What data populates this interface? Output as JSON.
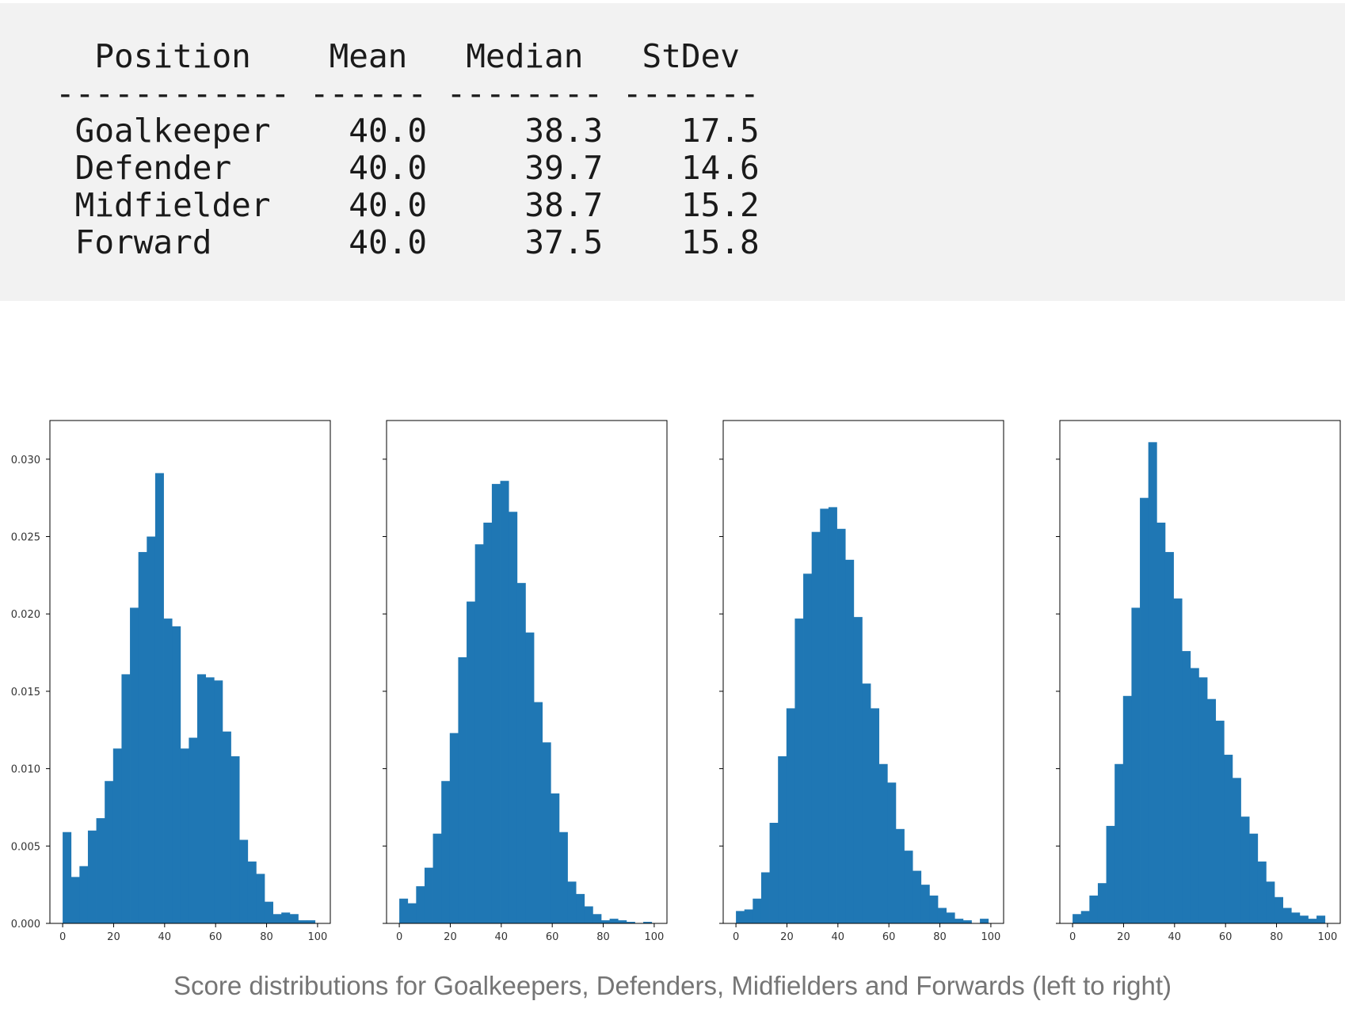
{
  "stats_table": {
    "columns": [
      "Position",
      "Mean",
      "Median",
      "StDev"
    ],
    "rows": [
      [
        "Goalkeeper",
        "40.0",
        "38.3",
        "17.5"
      ],
      [
        "Defender",
        "40.0",
        "39.7",
        "14.6"
      ],
      [
        "Midfielder",
        "40.0",
        "38.7",
        "15.2"
      ],
      [
        "Forward",
        "40.0",
        "37.5",
        "15.8"
      ]
    ]
  },
  "caption": "Score distributions for Goalkeepers, Defenders, Midfielders and Forwards (left to right)",
  "colors": {
    "bar": "#1f77b4",
    "code_background": "#f2f2f2",
    "caption": "#757575"
  },
  "chart_data": [
    {
      "type": "bar",
      "title": "",
      "xlabel": "",
      "ylabel": "",
      "xlim": [
        -5,
        105
      ],
      "ylim": [
        0,
        0.0325
      ],
      "x_ticks": [
        0,
        20,
        40,
        60,
        80,
        100
      ],
      "y_ticks": [
        0.0,
        0.005,
        0.01,
        0.015,
        0.02,
        0.025,
        0.03
      ],
      "y_tick_labels": [
        "0.000",
        "0.005",
        "0.010",
        "0.015",
        "0.020",
        "0.025",
        "0.030"
      ],
      "bin_start": 0,
      "bin_width": 3.3,
      "values": [
        0.0059,
        0.003,
        0.0037,
        0.006,
        0.0068,
        0.0092,
        0.0113,
        0.0161,
        0.0204,
        0.024,
        0.025,
        0.0291,
        0.0197,
        0.0192,
        0.0113,
        0.012,
        0.0161,
        0.0159,
        0.0157,
        0.0124,
        0.0108,
        0.0054,
        0.004,
        0.0032,
        0.0014,
        0.0006,
        0.0007,
        0.0006,
        0.0002,
        0.0002
      ]
    },
    {
      "type": "bar",
      "title": "",
      "xlabel": "",
      "ylabel": "",
      "xlim": [
        -5,
        105
      ],
      "ylim": [
        0,
        0.0325
      ],
      "x_ticks": [
        0,
        20,
        40,
        60,
        80,
        100
      ],
      "bin_start": 0,
      "bin_width": 3.3,
      "values": [
        0.0016,
        0.0013,
        0.0024,
        0.0036,
        0.0058,
        0.0092,
        0.0123,
        0.0172,
        0.0208,
        0.0245,
        0.0259,
        0.0284,
        0.0286,
        0.0266,
        0.022,
        0.0188,
        0.0143,
        0.0117,
        0.0084,
        0.0059,
        0.0027,
        0.0019,
        0.0011,
        0.0006,
        0.0002,
        0.0003,
        0.0002,
        0.0001,
        0.0,
        0.0001
      ]
    },
    {
      "type": "bar",
      "title": "",
      "xlabel": "",
      "ylabel": "",
      "xlim": [
        -5,
        105
      ],
      "ylim": [
        0,
        0.0325
      ],
      "x_ticks": [
        0,
        20,
        40,
        60,
        80,
        100
      ],
      "bin_start": 0,
      "bin_width": 3.3,
      "values": [
        0.0008,
        0.0009,
        0.0016,
        0.0033,
        0.0065,
        0.0108,
        0.0139,
        0.0197,
        0.0226,
        0.0253,
        0.0268,
        0.0269,
        0.0255,
        0.0235,
        0.0198,
        0.0155,
        0.0139,
        0.0103,
        0.0091,
        0.0061,
        0.0047,
        0.0034,
        0.0025,
        0.0018,
        0.001,
        0.0007,
        0.0003,
        0.0002,
        0.0,
        0.0003
      ]
    },
    {
      "type": "bar",
      "title": "",
      "xlabel": "",
      "ylabel": "",
      "xlim": [
        -5,
        105
      ],
      "ylim": [
        0,
        0.0325
      ],
      "x_ticks": [
        0,
        20,
        40,
        60,
        80,
        100
      ],
      "bin_start": 0,
      "bin_width": 3.3,
      "values": [
        0.0006,
        0.0008,
        0.0018,
        0.0026,
        0.0063,
        0.0103,
        0.0147,
        0.0204,
        0.0275,
        0.0311,
        0.0259,
        0.024,
        0.021,
        0.0176,
        0.0165,
        0.0159,
        0.0145,
        0.0131,
        0.0109,
        0.0094,
        0.0069,
        0.0058,
        0.004,
        0.0027,
        0.0017,
        0.001,
        0.0007,
        0.0005,
        0.0003,
        0.0005
      ]
    }
  ]
}
